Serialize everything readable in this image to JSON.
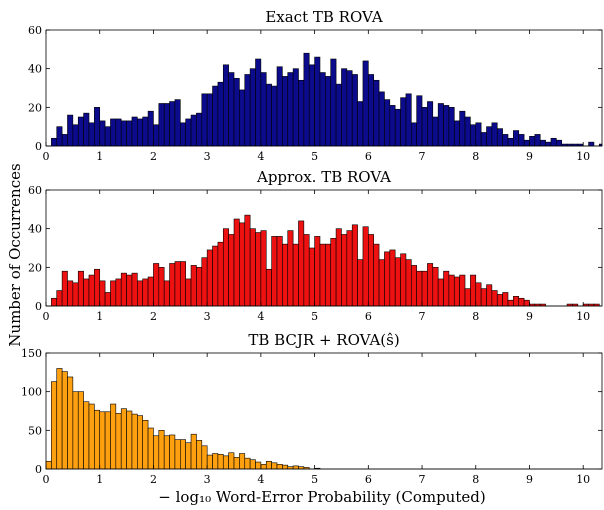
{
  "figure": {
    "ylabel": "Number of Occurrences",
    "xlabel": "− log₁₀ Word-Error Probability (Computed)"
  },
  "chart_data": [
    {
      "type": "bar",
      "title": "Exact TB ROVA",
      "color": "#0b0b8c",
      "xlim": [
        0,
        10.35
      ],
      "ylim": [
        0,
        60
      ],
      "xticks": [
        0,
        1,
        2,
        3,
        4,
        5,
        6,
        7,
        8,
        9,
        10
      ],
      "yticks": [
        0,
        20,
        40,
        60
      ],
      "bin_width": 0.1,
      "x_start": 0.0,
      "values": [
        0,
        4,
        10,
        6,
        16,
        11,
        15,
        17,
        12,
        20,
        13,
        10,
        14,
        14,
        13,
        13,
        15,
        14,
        15,
        18,
        11,
        22,
        22,
        23,
        24,
        12,
        14,
        16,
        17,
        27,
        27,
        31,
        33,
        42,
        38,
        35,
        29,
        37,
        40,
        45,
        38,
        32,
        31,
        41,
        36,
        38,
        40,
        34,
        48,
        42,
        46,
        38,
        36,
        45,
        32,
        40,
        39,
        37,
        23,
        44,
        37,
        34,
        28,
        24,
        21,
        19,
        25,
        27,
        12,
        26,
        20,
        23,
        15,
        22,
        21,
        20,
        13,
        18,
        15,
        11,
        12,
        7,
        10,
        12,
        9,
        6,
        4,
        8,
        6,
        3,
        5,
        6,
        3,
        2,
        4,
        3,
        1,
        1,
        1,
        1,
        0,
        2,
        0,
        1
      ]
    },
    {
      "type": "bar",
      "title": "Approx. TB ROVA",
      "color": "#ee1111",
      "xlim": [
        0,
        10.35
      ],
      "ylim": [
        0,
        60
      ],
      "xticks": [
        0,
        1,
        2,
        3,
        4,
        5,
        6,
        7,
        8,
        9,
        10
      ],
      "yticks": [
        0,
        20,
        40,
        60
      ],
      "bin_width": 0.1,
      "x_start": 0.0,
      "values": [
        0,
        4,
        8,
        18,
        13,
        12,
        18,
        14,
        16,
        19,
        13,
        7,
        13,
        14,
        17,
        16,
        17,
        13,
        14,
        15,
        22,
        20,
        13,
        22,
        23,
        23,
        14,
        21,
        20,
        25,
        29,
        31,
        33,
        40,
        37,
        45,
        43,
        47,
        40,
        38,
        39,
        19,
        36,
        36,
        32,
        39,
        32,
        44,
        37,
        30,
        36,
        32,
        32,
        35,
        40,
        37,
        39,
        42,
        24,
        41,
        37,
        32,
        24,
        28,
        29,
        25,
        27,
        24,
        21,
        18,
        18,
        22,
        20,
        14,
        18,
        16,
        15,
        16,
        9,
        16,
        12,
        9,
        11,
        8,
        6,
        7,
        3,
        5,
        4,
        3,
        1,
        1,
        1,
        0,
        0,
        0,
        0,
        1,
        1,
        0,
        1,
        1,
        1
      ]
    },
    {
      "type": "bar",
      "title": "TB BCJR + ROVA(ŝ)",
      "color": "#ffa010",
      "xlim": [
        0,
        10.35
      ],
      "ylim": [
        0,
        150
      ],
      "xticks": [
        0,
        1,
        2,
        3,
        4,
        5,
        6,
        7,
        8,
        9,
        10
      ],
      "yticks": [
        0,
        50,
        100,
        150
      ],
      "bin_width": 0.1,
      "x_start": 0.0,
      "values": [
        10,
        113,
        130,
        126,
        119,
        100,
        100,
        87,
        84,
        76,
        74,
        74,
        84,
        72,
        78,
        75,
        71,
        69,
        63,
        53,
        43,
        50,
        43,
        44,
        38,
        38,
        34,
        45,
        37,
        30,
        18,
        20,
        19,
        17,
        21,
        15,
        20,
        14,
        12,
        9,
        6,
        10,
        8,
        6,
        5,
        3,
        4,
        3,
        2,
        0,
        1,
        0,
        0,
        0,
        0,
        0,
        0,
        0,
        0,
        0,
        0,
        0,
        0,
        0,
        0,
        0,
        0,
        0,
        0,
        0,
        0,
        0,
        0,
        0,
        0,
        0,
        0,
        0,
        0,
        0,
        0,
        0,
        0,
        0,
        0,
        0,
        0,
        0,
        0,
        0,
        0,
        0,
        0,
        0,
        0,
        0,
        0,
        0,
        0,
        0,
        0,
        0,
        0
      ]
    }
  ]
}
